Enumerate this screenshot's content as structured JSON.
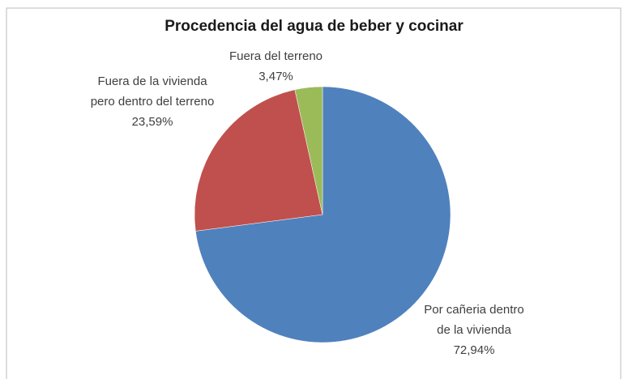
{
  "chart_data": {
    "type": "pie",
    "title": "Procedencia del agua de beber y cocinar",
    "categories": [
      "Por cañeria dentro de la vivienda",
      "Fuera de la vivienda pero dentro del terreno",
      "Fuera del terreno"
    ],
    "values": [
      72.94,
      23.59,
      3.47
    ],
    "value_labels": [
      "72,94%",
      "23,59%",
      "3,47%"
    ],
    "colors": [
      "#4f81bd",
      "#c0504d",
      "#9bbb59"
    ]
  }
}
